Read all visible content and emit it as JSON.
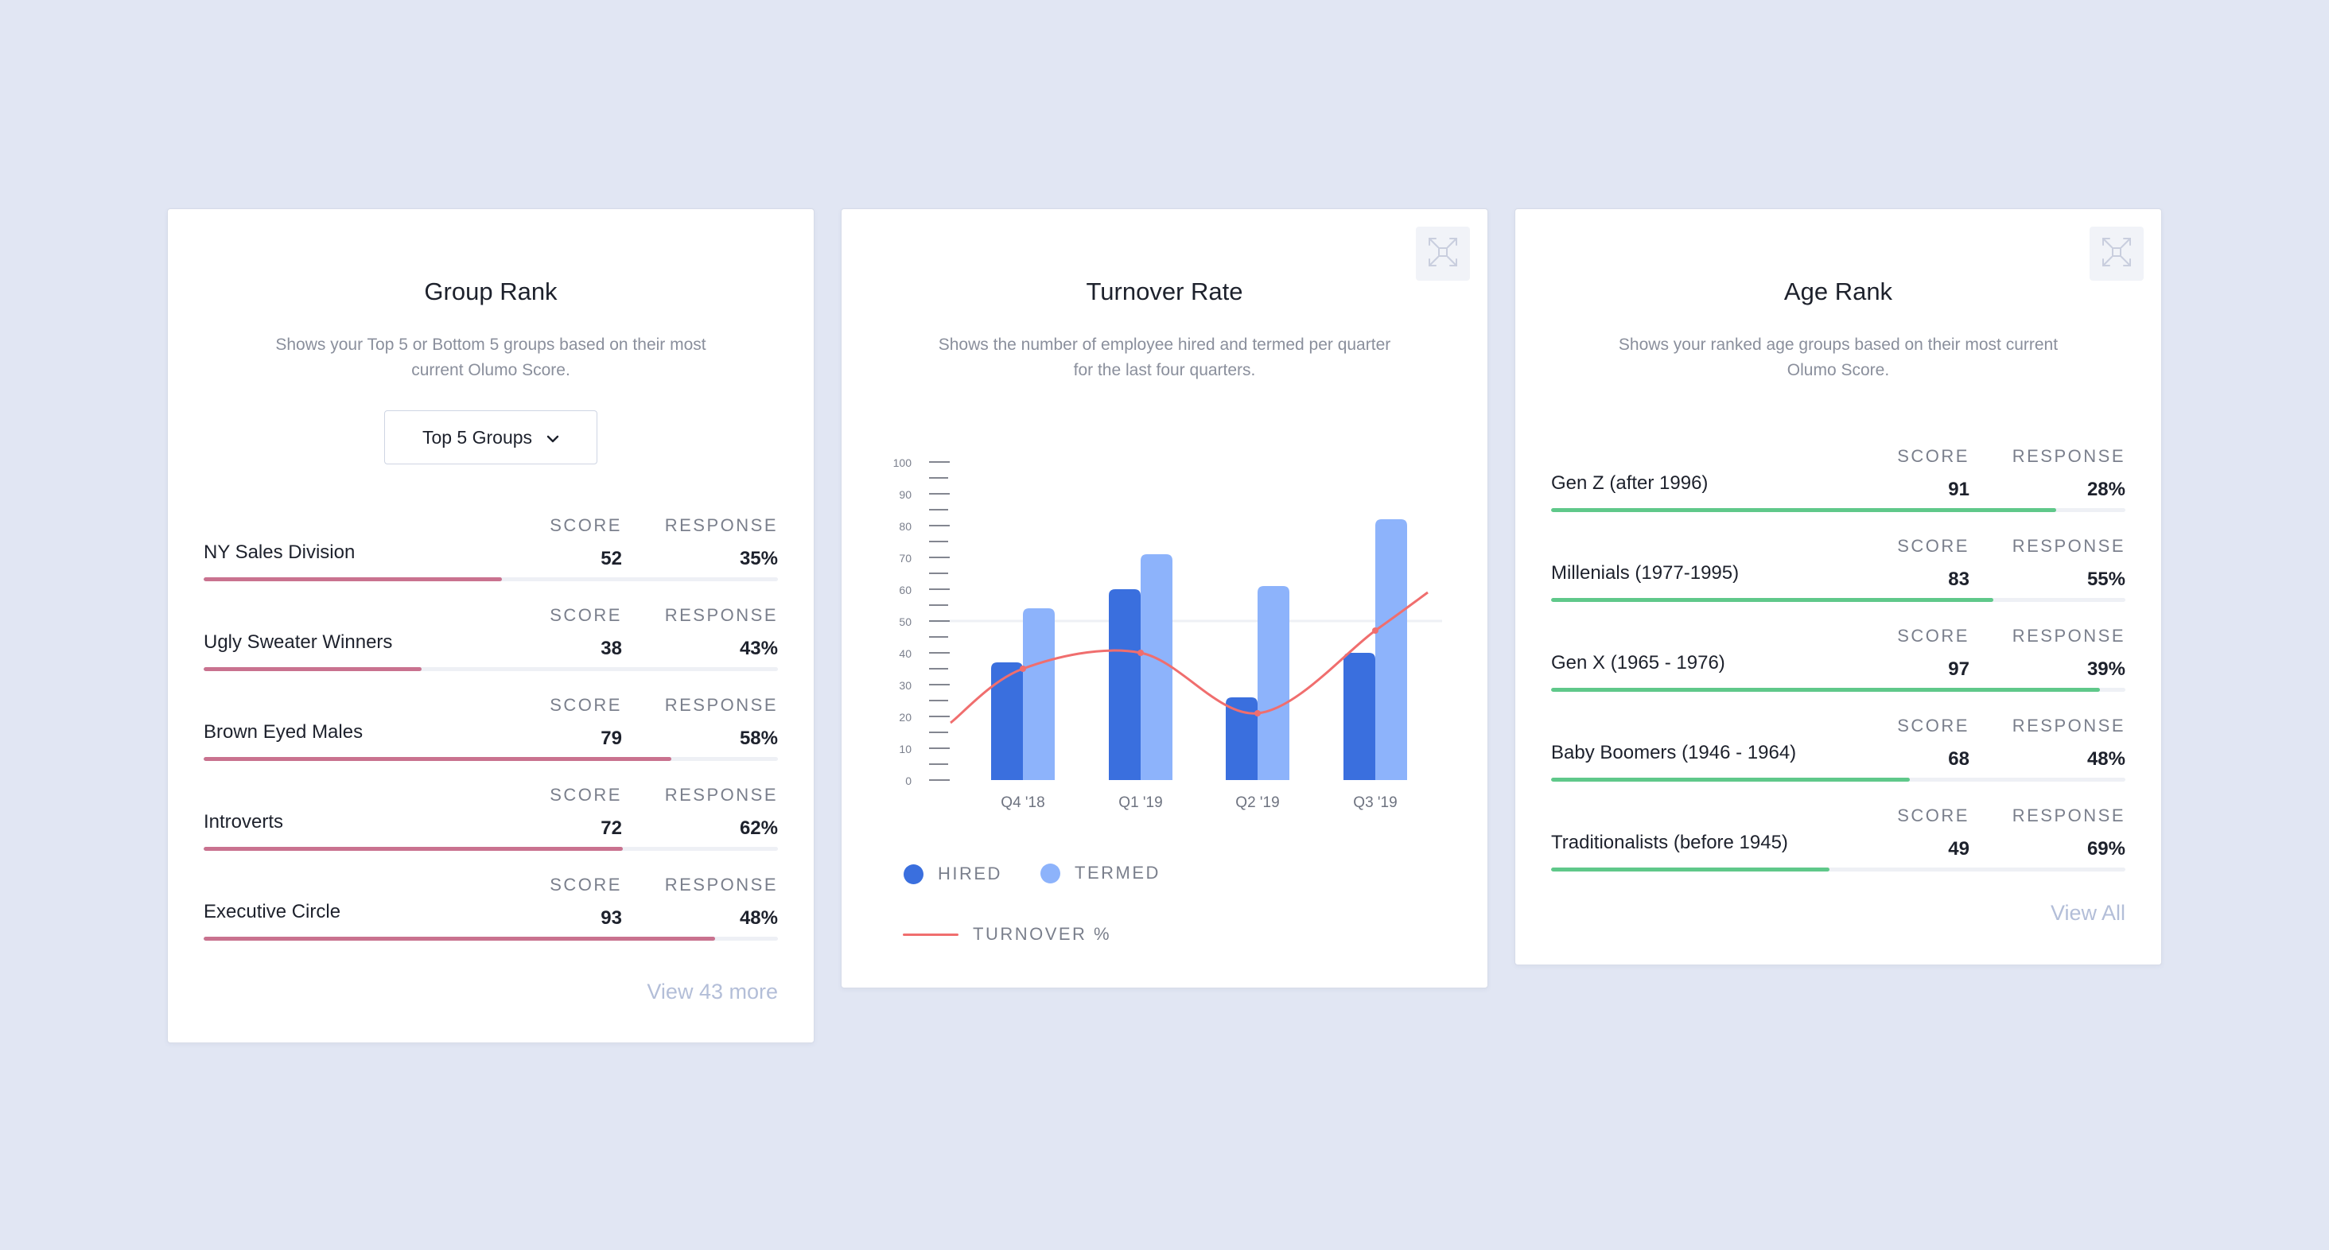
{
  "group_rank": {
    "title": "Group Rank",
    "description": "Shows your Top 5 or Bottom 5 groups based on their most current Olumo Score.",
    "dropdown_value": "Top 5 Groups",
    "score_label": "SCORE",
    "response_label": "RESPONSE",
    "rows": [
      {
        "name": "NY Sales Division",
        "score": "52",
        "response": "35%",
        "level": 0.52
      },
      {
        "name": "Ugly Sweater Winners",
        "score": "38",
        "response": "43%",
        "level": 0.38
      },
      {
        "name": "Brown Eyed Males",
        "score": "79",
        "response": "58%",
        "level": 0.815
      },
      {
        "name": "Introverts",
        "score": "72",
        "response": "62%",
        "level": 0.73
      },
      {
        "name": "Executive Circle",
        "score": "93",
        "response": "48%",
        "level": 0.89
      }
    ],
    "view_more": "View 43 more",
    "bar_color": "#c9728f"
  },
  "turnover": {
    "title": "Turnover Rate",
    "description": "Shows the number of employee hired and termed per quarter for the last four quarters.",
    "legend": {
      "hired": "HIRED",
      "termed": "TERMED",
      "turnover": "TURNOVER %"
    }
  },
  "chart_data": {
    "type": "bar",
    "categories": [
      "Q4 '18",
      "Q1 '19",
      "Q2 '19",
      "Q3 '19"
    ],
    "series": [
      {
        "name": "HIRED",
        "values": [
          37,
          60,
          26,
          40
        ],
        "color": "#3a6fde"
      },
      {
        "name": "TERMED",
        "values": [
          54,
          71,
          61,
          82
        ],
        "color": "#8db3fb"
      }
    ],
    "line_series": {
      "name": "TURNOVER %",
      "values": [
        35,
        40,
        21,
        47
      ],
      "color": "#f06e6e"
    },
    "ylim": [
      0,
      100
    ],
    "yticks": [
      0,
      10,
      20,
      30,
      40,
      50,
      60,
      70,
      80,
      90,
      100
    ],
    "xlabel": "",
    "ylabel": "",
    "legend_position": "bottom-left"
  },
  "age_rank": {
    "title": "Age Rank",
    "description": "Shows your ranked age groups based on their most current Olumo Score.",
    "score_label": "SCORE",
    "response_label": "RESPONSE",
    "rows": [
      {
        "name": "Gen Z (after 1996)",
        "score": "91",
        "response": "28%",
        "level": 0.88
      },
      {
        "name": "Millenials (1977-1995)",
        "score": "83",
        "response": "55%",
        "level": 0.77
      },
      {
        "name": "Gen X (1965 - 1976)",
        "score": "97",
        "response": "39%",
        "level": 0.955
      },
      {
        "name": "Baby Boomers (1946 - 1964)",
        "score": "68",
        "response": "48%",
        "level": 0.625
      },
      {
        "name": "Traditionalists (before 1945)",
        "score": "49",
        "response": "69%",
        "level": 0.485
      }
    ],
    "view_more": "View All",
    "bar_color": "#5fc88a"
  }
}
